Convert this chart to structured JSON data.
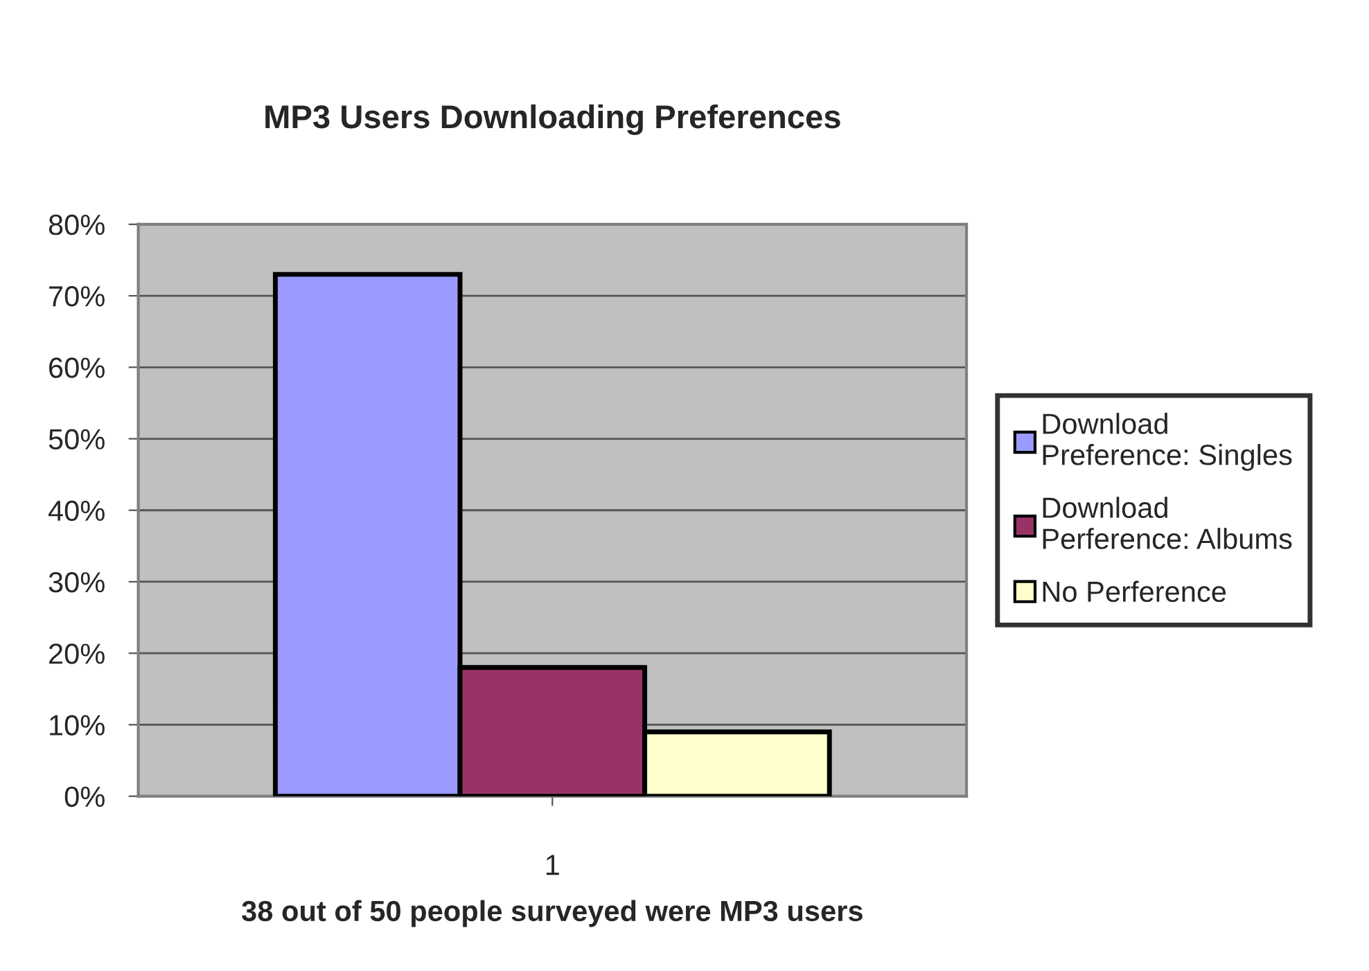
{
  "chart_data": {
    "type": "bar",
    "title": "MP3 Users Downloading Preferences",
    "xlabel": "38 out of 50 people surveyed were MP3 users",
    "categories": [
      "1"
    ],
    "series": [
      {
        "name": "Download Preference: Singles",
        "color": "#9999ff",
        "values": [
          73
        ]
      },
      {
        "name": "Download Perference: Albums",
        "color": "#993366",
        "values": [
          18
        ]
      },
      {
        "name": "No Perference",
        "color": "#ffffcc",
        "values": [
          9
        ]
      }
    ],
    "ylim": [
      0,
      80
    ],
    "yticks": [
      {
        "value": 0,
        "label": "0%"
      },
      {
        "value": 10,
        "label": "10%"
      },
      {
        "value": 20,
        "label": "20%"
      },
      {
        "value": 30,
        "label": "30%"
      },
      {
        "value": 40,
        "label": "40%"
      },
      {
        "value": 50,
        "label": "50%"
      },
      {
        "value": 60,
        "label": "60%"
      },
      {
        "value": 70,
        "label": "70%"
      },
      {
        "value": 80,
        "label": "80%"
      }
    ],
    "grid": "y",
    "legend": "right"
  }
}
